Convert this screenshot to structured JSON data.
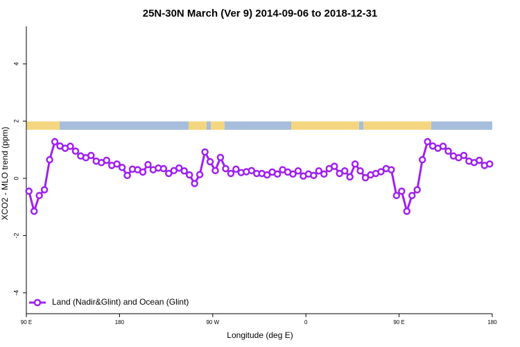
{
  "chart_data": {
    "type": "line",
    "title": "25N-30N March (Ver 9)   2014-09-06 to 2018-12-31",
    "xlabel": "Longitude (deg E)",
    "ylabel": "XCO2 - MLO trend (ppm)",
    "x": [
      92.5,
      97.5,
      102.5,
      107.5,
      112.5,
      117.5,
      122.5,
      127.5,
      132.5,
      137.5,
      142.5,
      147.5,
      152.5,
      157.5,
      162.5,
      167.5,
      172.5,
      177.5,
      182.5,
      187.5,
      192.5,
      197.5,
      202.5,
      207.5,
      212.5,
      217.5,
      222.5,
      227.5,
      232.5,
      237.5,
      242.5,
      247.5,
      252.5,
      257.5,
      262.5,
      267.5,
      272.5,
      277.5,
      282.5,
      287.5,
      292.5,
      297.5,
      302.5,
      307.5,
      312.5,
      317.5,
      322.5,
      327.5,
      332.5,
      337.5,
      342.5,
      347.5,
      352.5,
      357.5,
      362.5,
      367.5,
      372.5,
      377.5,
      382.5,
      387.5,
      392.5,
      397.5,
      402.5,
      407.5,
      412.5,
      417.5,
      422.5,
      427.5,
      432.5,
      437.5,
      442.5,
      447.5,
      452.5,
      457.5,
      462.5,
      467.5,
      472.5,
      477.5,
      482.5,
      487.5,
      492.5,
      497.5,
      502.5,
      507.5,
      512.5,
      517.5,
      522.5,
      527.5,
      532.5,
      537.5
    ],
    "series": [
      {
        "name": "Land (Nadir&Glint) and Ocean (Glint)",
        "color": "#a020f0",
        "values": [
          -0.45,
          -1.15,
          -0.6,
          -0.4,
          0.65,
          1.28,
          1.13,
          1.05,
          1.12,
          0.95,
          0.78,
          0.72,
          0.8,
          0.6,
          0.55,
          0.63,
          0.45,
          0.5,
          0.38,
          0.1,
          0.32,
          0.3,
          0.22,
          0.48,
          0.3,
          0.36,
          0.34,
          0.17,
          0.27,
          0.36,
          0.26,
          0.12,
          -0.18,
          0.13,
          0.92,
          0.58,
          0.27,
          0.73,
          0.34,
          0.17,
          0.32,
          0.2,
          0.23,
          0.27,
          0.17,
          0.17,
          0.12,
          0.22,
          0.15,
          0.3,
          0.22,
          0.15,
          0.26,
          0.08,
          0.15,
          0.1,
          0.26,
          0.15,
          0.34,
          0.42,
          0.17,
          0.26,
          0.05,
          0.5,
          0.26,
          0.02,
          0.12,
          0.17,
          0.23,
          0.34,
          0.3,
          -0.6,
          -0.45,
          -1.15,
          -0.6,
          -0.4,
          0.65,
          1.28,
          1.13,
          1.05,
          1.12,
          0.95,
          0.78,
          0.72,
          0.8,
          0.6,
          0.55,
          0.63,
          0.45,
          0.5
        ]
      }
    ],
    "xlim": [
      90,
      540
    ],
    "xticks": [
      {
        "value": 90,
        "label": "90 E"
      },
      180,
      {
        "value": 270,
        "label": "90 W"
      },
      {
        "value": 360,
        "label": "0"
      },
      {
        "value": 450,
        "label": "90 E"
      },
      {
        "value": 540,
        "label": "180"
      }
    ],
    "ylim": [
      -4.73,
      5.31
    ],
    "yticks": [
      -4,
      -2,
      0,
      2,
      4
    ],
    "legend": "bottom-left"
  }
}
